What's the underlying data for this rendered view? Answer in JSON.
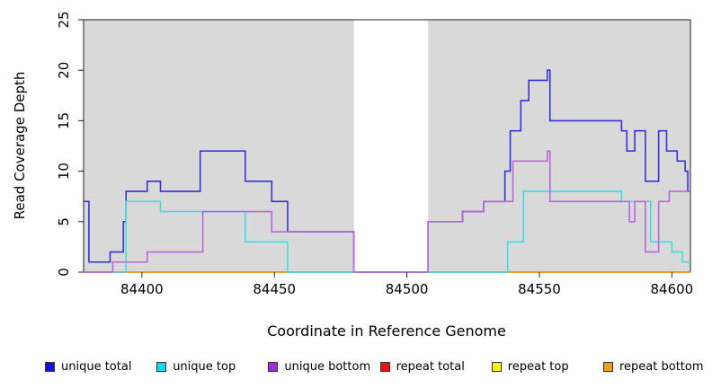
{
  "axis": {
    "xlabel": "Coordinate in Reference Genome",
    "ylabel": "Read Coverage Depth"
  },
  "chart_data": {
    "type": "line",
    "subtype": "step-coverage",
    "xlabel": "Coordinate in Reference Genome",
    "ylabel": "Read Coverage Depth",
    "xlim": [
      84378,
      84607
    ],
    "ylim": [
      0,
      25
    ],
    "x_ticks": [
      84400,
      84450,
      84500,
      84550,
      84600
    ],
    "y_ticks": [
      0,
      5,
      10,
      15,
      20,
      25
    ],
    "plot_bg": "#d9d9d9",
    "gap_region": {
      "x1": 84480,
      "x2": 84508,
      "color": "#ffffff",
      "note": "white band, no shading; coverage drops to 0"
    },
    "series": [
      {
        "name": "unique total",
        "color": "#3333dd",
        "end": 84607,
        "steps": [
          [
            84378,
            7
          ],
          [
            84380,
            1
          ],
          [
            84388,
            2
          ],
          [
            84393,
            5
          ],
          [
            84394,
            8
          ],
          [
            84402,
            9
          ],
          [
            84407,
            8
          ],
          [
            84422,
            12
          ],
          [
            84439,
            9
          ],
          [
            84449,
            7
          ],
          [
            84455,
            4
          ],
          [
            84480,
            0
          ],
          [
            84508,
            5
          ],
          [
            84521,
            6
          ],
          [
            84529,
            7
          ],
          [
            84537,
            10
          ],
          [
            84539,
            14
          ],
          [
            84543,
            17
          ],
          [
            84546,
            19
          ],
          [
            84553,
            20
          ],
          [
            84554,
            15
          ],
          [
            84581,
            14
          ],
          [
            84583,
            12
          ],
          [
            84586,
            14
          ],
          [
            84590,
            9
          ],
          [
            84595,
            14
          ],
          [
            84598,
            12
          ],
          [
            84602,
            11
          ],
          [
            84605,
            10
          ],
          [
            84606,
            8
          ]
        ]
      },
      {
        "name": "unique top",
        "color": "#40dede",
        "end": 84607,
        "steps": [
          [
            84378,
            0
          ],
          [
            84394,
            7
          ],
          [
            84407,
            6
          ],
          [
            84439,
            3
          ],
          [
            84455,
            0
          ],
          [
            84538,
            3
          ],
          [
            84544,
            8
          ],
          [
            84581,
            7
          ],
          [
            84592,
            3
          ],
          [
            84600,
            2
          ],
          [
            84604,
            1
          ]
        ]
      },
      {
        "name": "unique bottom",
        "color": "#b768de",
        "end": 84607,
        "steps": [
          [
            84378,
            0
          ],
          [
            84389,
            1
          ],
          [
            84402,
            2
          ],
          [
            84423,
            6
          ],
          [
            84449,
            4
          ],
          [
            84480,
            0
          ],
          [
            84508,
            5
          ],
          [
            84521,
            6
          ],
          [
            84529,
            7
          ],
          [
            84540,
            11
          ],
          [
            84553,
            12
          ],
          [
            84554,
            7
          ],
          [
            84584,
            5
          ],
          [
            84586,
            7
          ],
          [
            84590,
            2
          ],
          [
            84595,
            7
          ],
          [
            84599,
            8
          ]
        ]
      }
    ],
    "baseline_series": [
      {
        "name": "repeat total",
        "color": "#dd2222",
        "value": 0,
        "segments": [
          [
            84378,
            84607
          ]
        ]
      },
      {
        "name": "repeat top",
        "color": "#86cf9c",
        "value": 0,
        "segments": [
          [
            84455,
            84480
          ],
          [
            84508,
            84538
          ]
        ]
      },
      {
        "name": "repeat bottom",
        "color": "#ff9d00",
        "value": 0,
        "segments": [
          [
            84389,
            84455
          ],
          [
            84538,
            84607
          ]
        ]
      }
    ],
    "legend": [
      {
        "label": "unique total",
        "color": "#1212e0"
      },
      {
        "label": "unique top",
        "color": "#00e0ee"
      },
      {
        "label": "unique bottom",
        "color": "#9c2fd6"
      },
      {
        "label": "repeat total",
        "color": "#ee1111"
      },
      {
        "label": "repeat top",
        "color": "#f5f514"
      },
      {
        "label": "repeat bottom",
        "color": "#f09c1b"
      }
    ],
    "legend_position": "bottom"
  }
}
